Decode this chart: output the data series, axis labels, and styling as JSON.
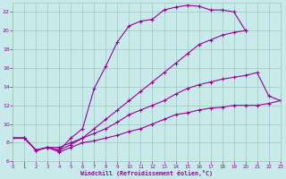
{
  "xlabel": "Windchill (Refroidissement éolien,°C)",
  "xlim": [
    0,
    23
  ],
  "ylim": [
    6,
    23
  ],
  "xticks": [
    0,
    1,
    2,
    3,
    4,
    5,
    6,
    7,
    8,
    9,
    10,
    11,
    12,
    13,
    14,
    15,
    16,
    17,
    18,
    19,
    20,
    21,
    22,
    23
  ],
  "yticks": [
    6,
    8,
    10,
    12,
    14,
    16,
    18,
    20,
    22
  ],
  "bg_color": "#c8eaea",
  "grid_color": "#a0c8b8",
  "line_color": "#990099",
  "lines": [
    {
      "x": [
        0,
        1,
        2,
        3,
        4,
        5,
        6,
        7,
        8,
        9,
        10,
        11,
        12,
        13,
        14,
        15,
        16,
        17,
        18,
        19,
        20
      ],
      "y": [
        8.5,
        8.5,
        7.2,
        7.5,
        7.2,
        8.5,
        9.5,
        13.8,
        16.2,
        18.8,
        20.5,
        21.0,
        21.2,
        22.2,
        22.5,
        22.7,
        22.6,
        22.2,
        22.2,
        22.0,
        20.0
      ]
    },
    {
      "x": [
        0,
        1,
        2,
        3,
        4,
        5,
        6,
        7,
        8,
        9,
        10,
        11,
        12,
        13,
        14,
        15,
        16,
        17,
        18,
        19,
        20
      ],
      "y": [
        8.5,
        8.5,
        7.2,
        7.5,
        7.5,
        8.0,
        8.5,
        9.5,
        10.5,
        11.5,
        12.5,
        13.5,
        14.5,
        15.5,
        16.5,
        17.5,
        18.5,
        19.0,
        19.5,
        19.8,
        20.0
      ]
    },
    {
      "x": [
        0,
        1,
        2,
        3,
        4,
        5,
        6,
        7,
        8,
        9,
        10,
        11,
        12,
        13,
        14,
        15,
        16,
        17,
        18,
        19,
        20,
        21,
        22,
        23
      ],
      "y": [
        8.5,
        8.5,
        7.2,
        7.5,
        7.0,
        7.5,
        8.0,
        8.2,
        8.5,
        8.8,
        9.2,
        9.5,
        10.0,
        10.5,
        11.0,
        11.2,
        11.5,
        11.7,
        11.8,
        12.0,
        12.0,
        12.0,
        12.2,
        12.5
      ]
    },
    {
      "x": [
        0,
        1,
        2,
        3,
        4,
        5,
        6,
        7,
        8,
        9,
        10,
        11,
        12,
        13,
        14,
        15,
        16,
        17,
        18,
        19,
        20,
        21,
        22,
        23
      ],
      "y": [
        8.5,
        8.5,
        7.2,
        7.5,
        7.2,
        7.8,
        8.5,
        9.0,
        9.5,
        10.2,
        11.0,
        11.5,
        12.0,
        12.5,
        13.2,
        13.8,
        14.2,
        14.5,
        14.8,
        15.0,
        15.2,
        15.5,
        13.0,
        12.5
      ]
    }
  ]
}
